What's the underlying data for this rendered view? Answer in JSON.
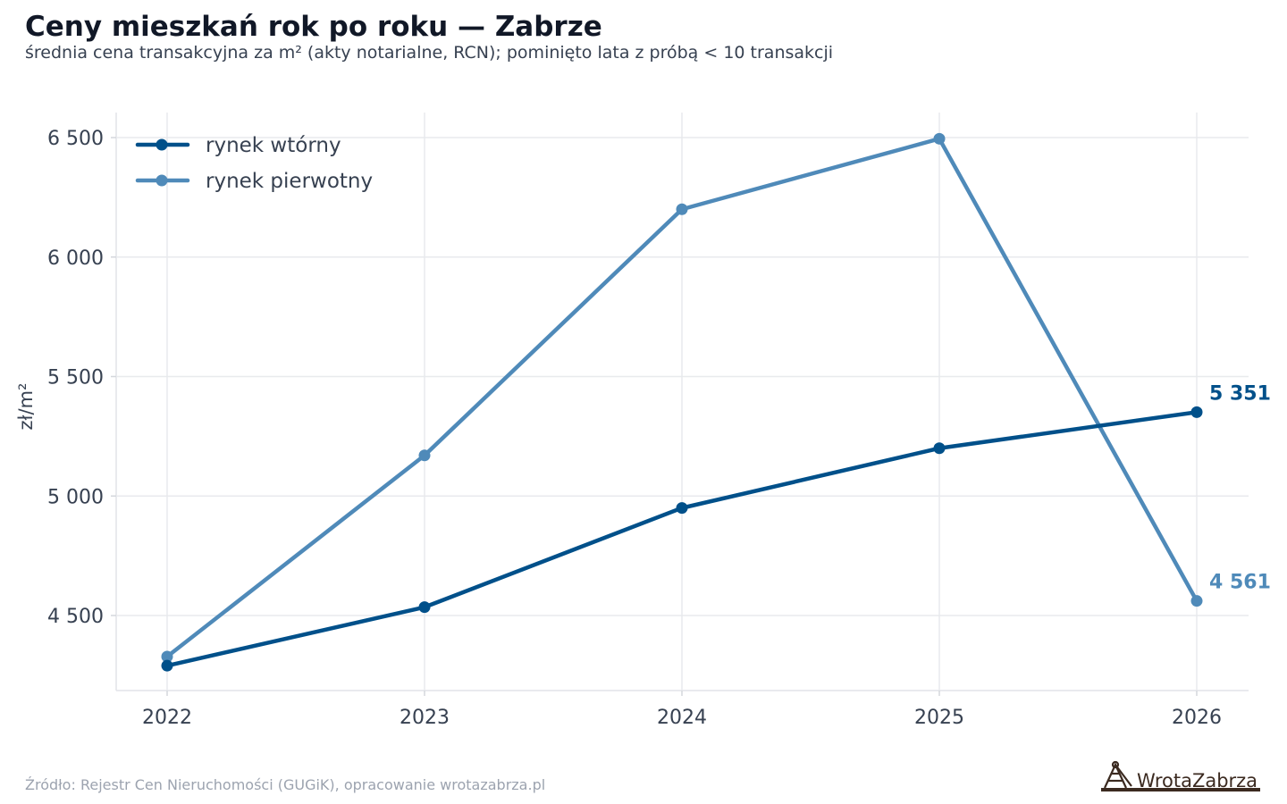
{
  "header": {
    "title": "Ceny mieszkań rok po roku — Zabrze",
    "subtitle": "średnia cena transakcyjna za m² (akty notarialne, RCN); pominięto lata z próbą < 10 transakcji"
  },
  "footer": {
    "source": "Źródło: Rejestr Cen Nieruchomości (GUGiK), opracowanie wrotazabrza.pl"
  },
  "logo": {
    "text": "WrotaZabrza"
  },
  "chart_data": {
    "type": "line",
    "x": [
      2022,
      2023,
      2024,
      2025,
      2026
    ],
    "ylabel": "zł/m²",
    "xlabel": "",
    "ylim": [
      4250,
      6600
    ],
    "yticks": [
      4500,
      5000,
      5500,
      6000,
      6500
    ],
    "ytick_labels": [
      "4 500",
      "5 000",
      "5 500",
      "6 000",
      "6 500"
    ],
    "xtick_labels": [
      "2022",
      "2023",
      "2024",
      "2025",
      "2026"
    ],
    "grid": true,
    "legend": "top-left",
    "series": [
      {
        "name": "rynek wtórny",
        "values": [
          4290,
          4535,
          4950,
          5200,
          5351
        ],
        "color": "#00508a",
        "end_label": "5 351"
      },
      {
        "name": "rynek pierwotny",
        "values": [
          4328,
          5170,
          6200,
          6495,
          4561
        ],
        "color": "#4f8ab9",
        "end_label": "4 561"
      }
    ]
  }
}
